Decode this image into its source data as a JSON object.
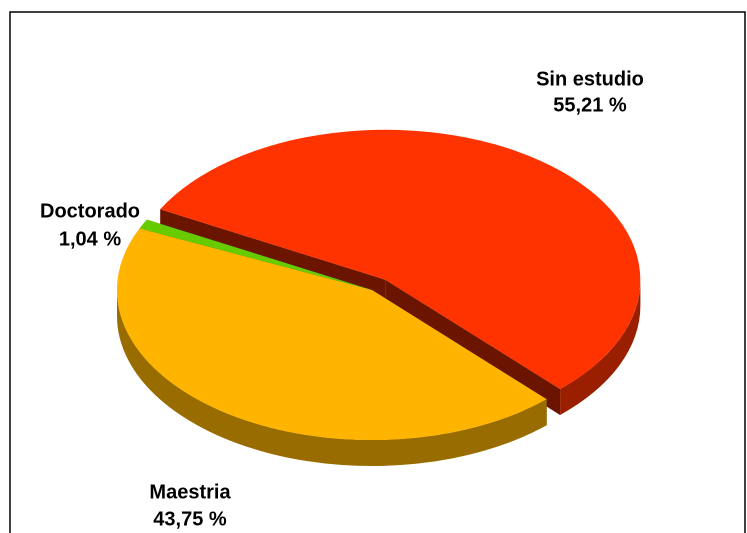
{
  "chart_data": {
    "type": "pie",
    "categories": [
      "Sin estudio",
      "Maestria",
      "Doctorado"
    ],
    "values": [
      55.21,
      43.75,
      1.04
    ],
    "value_labels": [
      "55,21 %",
      "43,75 %",
      "1,04 %"
    ],
    "colors": [
      "#ff3300",
      "#ffb400",
      "#66cc00"
    ]
  }
}
